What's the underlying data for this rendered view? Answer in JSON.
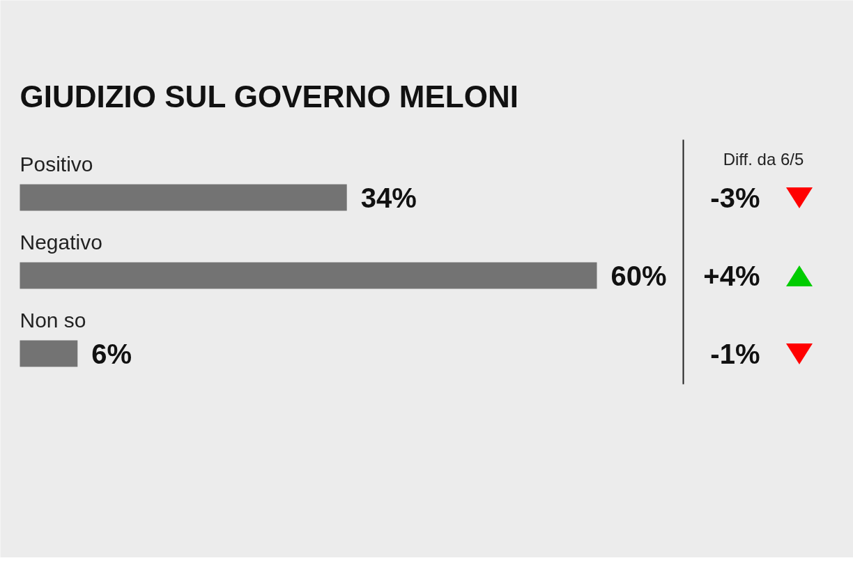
{
  "chart_data": {
    "type": "bar",
    "orientation": "horizontal",
    "title": "GIUDIZIO SUL GOVERNO MELONI",
    "categories": [
      "Positivo",
      "Negativo",
      "Non so"
    ],
    "values": [
      34,
      60,
      6
    ],
    "color": "#737373",
    "data_labels": true,
    "value_labels": [
      "34%",
      "60%",
      "6%"
    ],
    "annotations": [
      "Diff. da 6/5",
      "-3%",
      "+4%",
      "-1%"
    ]
  }
}
